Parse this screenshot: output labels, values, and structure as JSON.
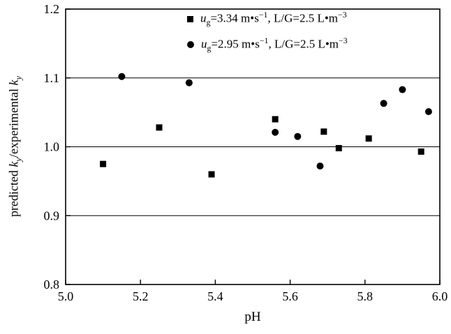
{
  "colors": {
    "foreground": "#000000",
    "background": "#ffffff"
  },
  "chart_data": {
    "type": "scatter",
    "title": "",
    "xlabel": "pH",
    "ylabel": "predicted ky/experimental ky",
    "ylabel_segments": [
      {
        "text": "predicted "
      },
      {
        "text": "k",
        "italic": true
      },
      {
        "text": "y",
        "italic": true,
        "sub": true
      },
      {
        "text": "/experimental "
      },
      {
        "text": "k",
        "italic": true
      },
      {
        "text": "y",
        "italic": true,
        "sub": true
      }
    ],
    "xlim": [
      5.0,
      6.0
    ],
    "ylim": [
      0.8,
      1.2
    ],
    "xticks": [
      {
        "value": 5.0,
        "label": "5.0"
      },
      {
        "value": 5.2,
        "label": "5.2"
      },
      {
        "value": 5.4,
        "label": "5.4"
      },
      {
        "value": 5.6,
        "label": "5.6"
      },
      {
        "value": 5.8,
        "label": "5.8"
      },
      {
        "value": 6.0,
        "label": "6.0"
      }
    ],
    "yticks": [
      {
        "value": 0.8,
        "label": "0.8"
      },
      {
        "value": 0.9,
        "label": "0.9"
      },
      {
        "value": 1.0,
        "label": "1.0"
      },
      {
        "value": 1.1,
        "label": "1.1"
      },
      {
        "value": 1.2,
        "label": "1.2"
      }
    ],
    "grid": true,
    "gridlines_y": [
      0.9,
      1.0,
      1.1
    ],
    "legend_position": "top-center-inside",
    "series": [
      {
        "name": "ug=3.34 m•s−1, L/G=2.5 L•m−3",
        "marker": "square",
        "label_segments": [
          {
            "text": "u",
            "italic": true
          },
          {
            "text": "g",
            "sub": true
          },
          {
            "text": "=3.34 m•s"
          },
          {
            "text": "−1",
            "sup": true
          },
          {
            "text": ", L/G=2.5 L•m"
          },
          {
            "text": "−3",
            "sup": true
          }
        ],
        "points": [
          {
            "x": 5.1,
            "y": 0.975
          },
          {
            "x": 5.25,
            "y": 1.028
          },
          {
            "x": 5.39,
            "y": 0.96
          },
          {
            "x": 5.56,
            "y": 1.04
          },
          {
            "x": 5.69,
            "y": 1.022
          },
          {
            "x": 5.73,
            "y": 0.998
          },
          {
            "x": 5.81,
            "y": 1.012
          },
          {
            "x": 5.95,
            "y": 0.993
          }
        ]
      },
      {
        "name": "ug=2.95 m•s−1, L/G=2.5 L•m−3",
        "marker": "circle",
        "label_segments": [
          {
            "text": "u",
            "italic": true
          },
          {
            "text": "g",
            "sub": true
          },
          {
            "text": "=2.95 m•s"
          },
          {
            "text": "−1",
            "sup": true
          },
          {
            "text": ", L/G=2.5 L•m"
          },
          {
            "text": "−3",
            "sup": true
          }
        ],
        "points": [
          {
            "x": 5.15,
            "y": 1.102
          },
          {
            "x": 5.33,
            "y": 1.093
          },
          {
            "x": 5.56,
            "y": 1.021
          },
          {
            "x": 5.62,
            "y": 1.015
          },
          {
            "x": 5.68,
            "y": 0.972
          },
          {
            "x": 5.85,
            "y": 1.063
          },
          {
            "x": 5.9,
            "y": 1.083
          },
          {
            "x": 5.97,
            "y": 1.051
          }
        ]
      }
    ]
  }
}
